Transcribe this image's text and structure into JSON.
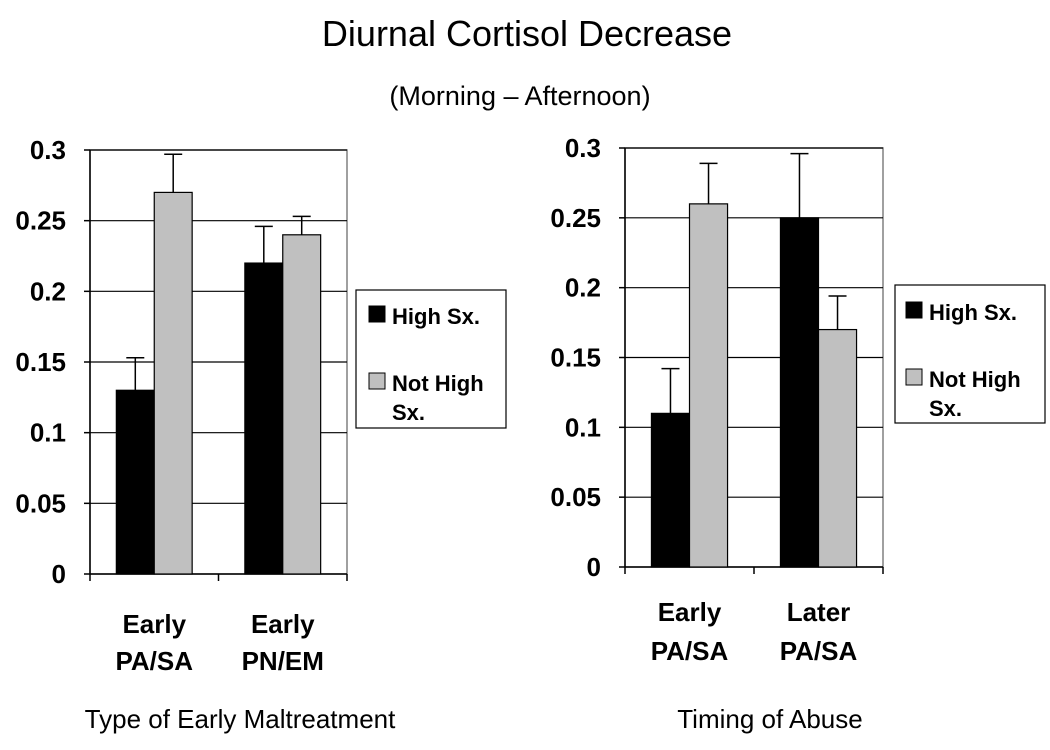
{
  "page": {
    "title": "Diurnal Cortisol Decrease",
    "subtitle": "(Morning – Afternoon)"
  },
  "colors": {
    "high": "#000000",
    "not_high": "#c0c0c0",
    "gridline": "#000000",
    "frame": "#808080"
  },
  "chart_data": [
    {
      "type": "bar",
      "xlabel": "Type of Early Maltreatment",
      "ylabel": "",
      "ylim": [
        0,
        0.3
      ],
      "yticks": [
        "0",
        "0.05",
        "0.1",
        "0.15",
        "0.2",
        "0.25",
        "0.3"
      ],
      "categories": [
        [
          "Early",
          "PA/SA"
        ],
        [
          "Early",
          "PN/EM"
        ]
      ],
      "series": [
        {
          "name": "High Sx.",
          "values": [
            0.13,
            0.22
          ],
          "errors": [
            0.023,
            0.026
          ]
        },
        {
          "name": "Not High Sx.",
          "values": [
            0.27,
            0.24
          ],
          "errors": [
            0.027,
            0.013
          ]
        }
      ],
      "legend": {
        "position": "right",
        "entries": [
          [
            "High Sx."
          ],
          [
            "Not High",
            "Sx."
          ]
        ]
      },
      "grid": true
    },
    {
      "type": "bar",
      "xlabel": "Timing of Abuse",
      "ylabel": "",
      "ylim": [
        0,
        0.3
      ],
      "yticks": [
        "0",
        "0.05",
        "0.1",
        "0.15",
        "0.2",
        "0.25",
        "0.3"
      ],
      "categories": [
        [
          "Early",
          "PA/SA"
        ],
        [
          "Later",
          "PA/SA"
        ]
      ],
      "series": [
        {
          "name": "High Sx.",
          "values": [
            0.11,
            0.25
          ],
          "errors": [
            0.032,
            0.046
          ]
        },
        {
          "name": "Not High Sx.",
          "values": [
            0.26,
            0.17
          ],
          "errors": [
            0.029,
            0.024
          ]
        }
      ],
      "legend": {
        "position": "right",
        "entries": [
          [
            "High Sx."
          ],
          [
            "Not High",
            "Sx."
          ]
        ]
      },
      "grid": true
    }
  ]
}
